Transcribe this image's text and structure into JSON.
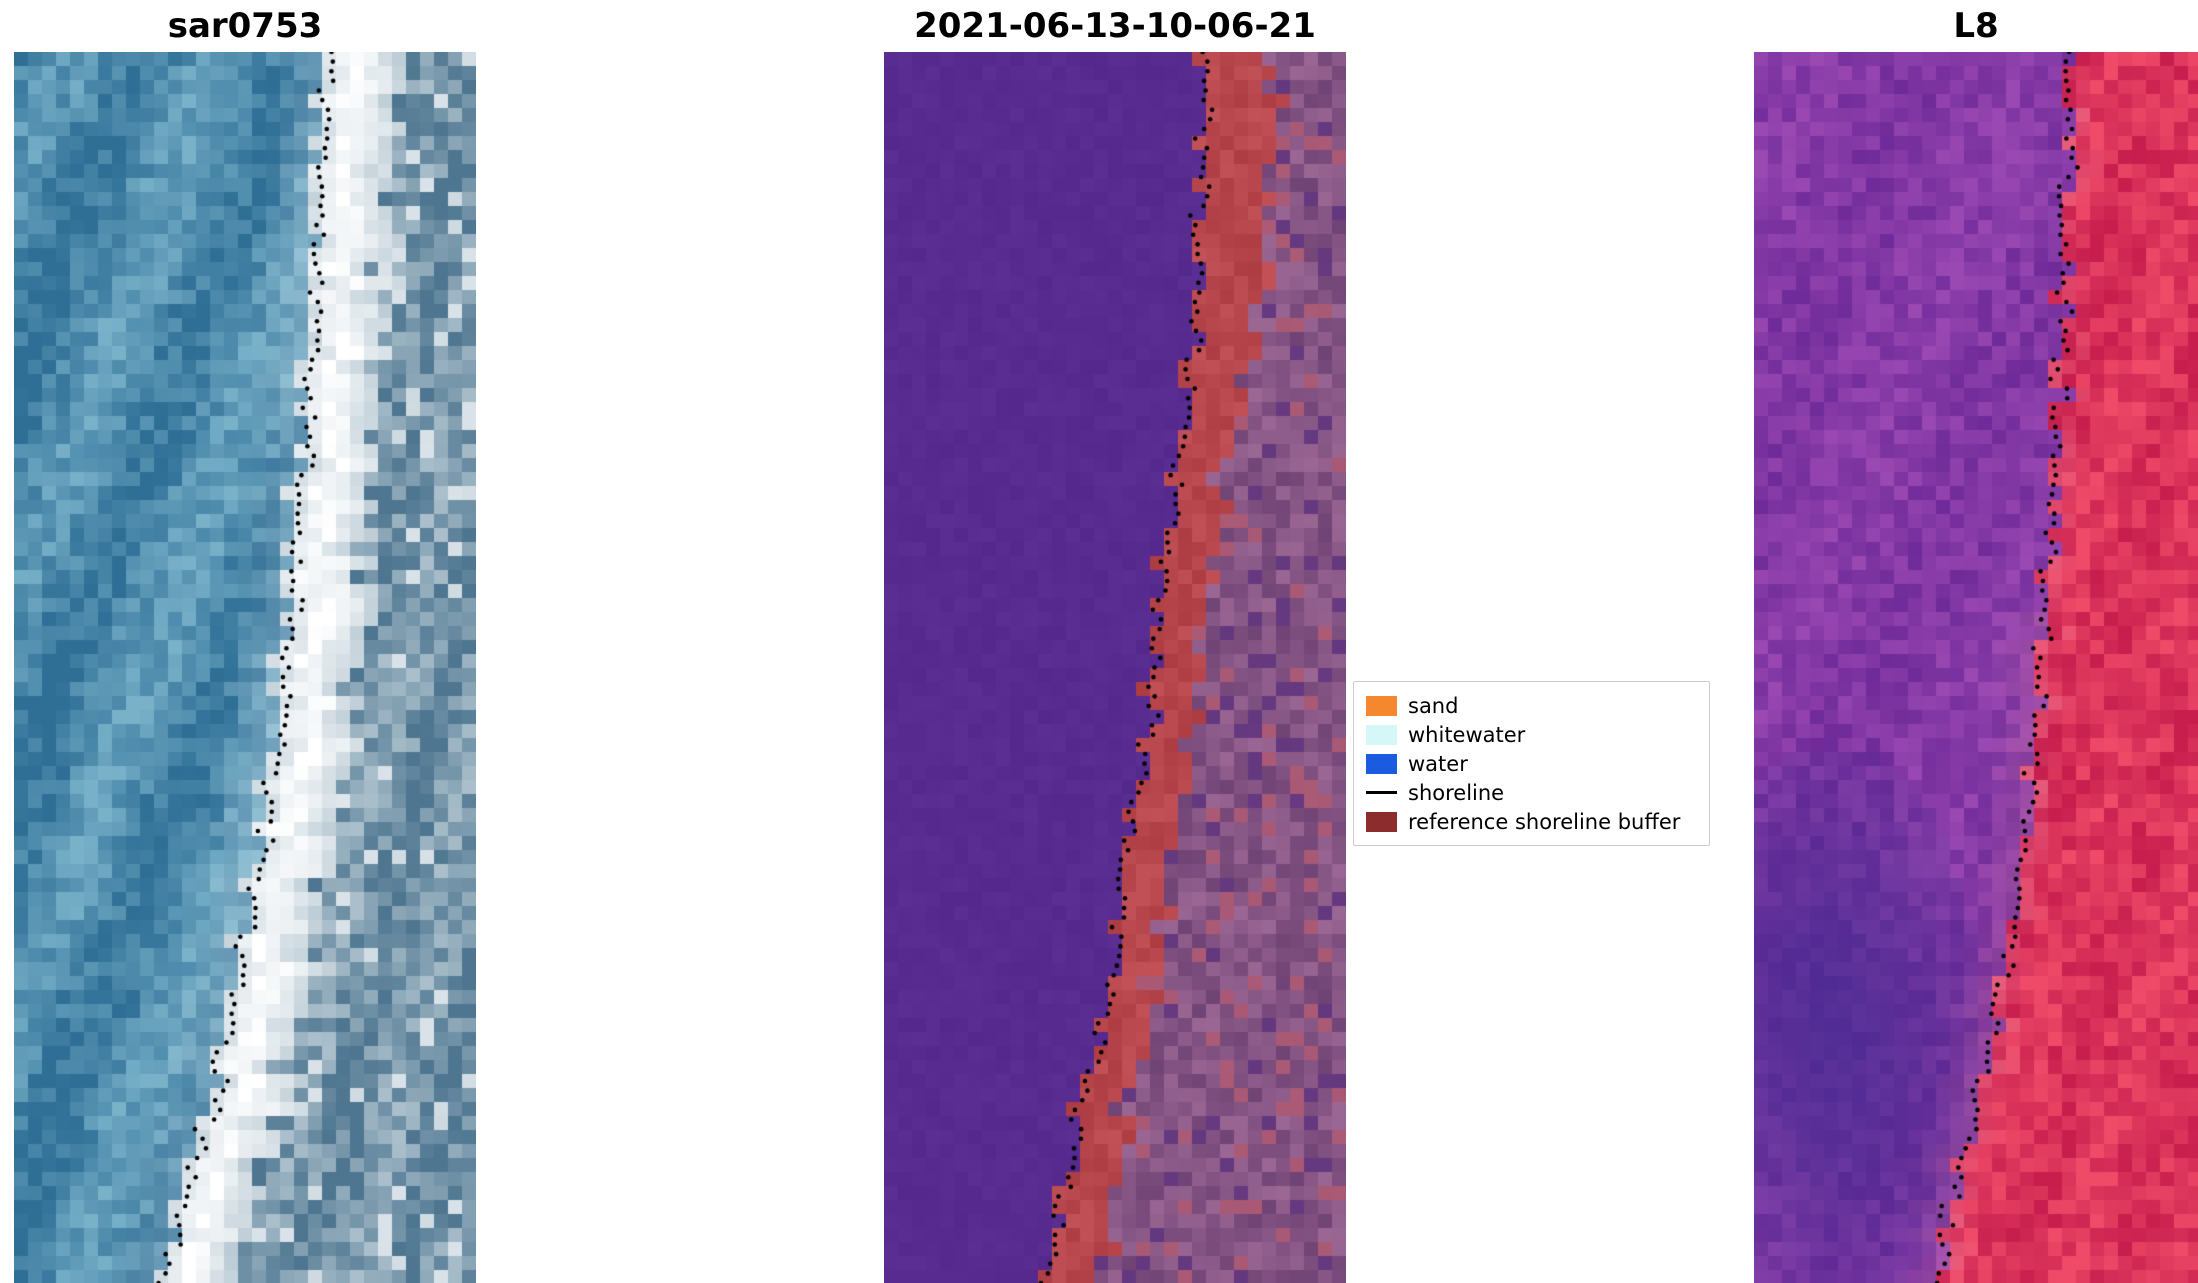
{
  "chart_data": {
    "type": "image-panels",
    "description": "Shoreline detection figure with three satellite image panels (SAR image, classified image with reference shoreline buffer, Landsat-8 false-color image), each overlaid with a black dotted detected shoreline.",
    "panels": [
      {
        "title": "sar0753",
        "kind": "sar",
        "seed": 11,
        "shoreline": [
          [
            0,
            0.685
          ],
          [
            0.25,
            0.645
          ],
          [
            0.5,
            0.6
          ],
          [
            0.75,
            0.49
          ],
          [
            0.9,
            0.4
          ],
          [
            1,
            0.31
          ]
        ],
        "band_width": 0.16,
        "palette": {
          "water_dark": "#2f6f96",
          "water_light": "#79b1c9",
          "white": "#ffffff",
          "band_gray": "#b7c8d2",
          "right_dark": "#4e7690",
          "right_light": "#aabfcb"
        }
      },
      {
        "title": "2021-06-13-10-06-21",
        "kind": "classes",
        "seed": 23,
        "shoreline": [
          [
            0,
            0.7
          ],
          [
            0.25,
            0.665
          ],
          [
            0.5,
            0.585
          ],
          [
            0.75,
            0.5
          ],
          [
            0.85,
            0.43
          ],
          [
            1,
            0.355
          ]
        ],
        "band_width_points": [
          [
            0,
            0.17
          ],
          [
            0.3,
            0.12
          ],
          [
            0.5,
            0.1
          ],
          [
            1,
            0.11
          ]
        ],
        "palette": {
          "water_class": "#582b90",
          "buffer_red": "#b8474d",
          "mauve_dark": "#6b4072",
          "mauve_light": "#a06b97"
        }
      },
      {
        "title": "L8",
        "kind": "l8",
        "seed": 37,
        "shoreline": [
          [
            0,
            0.715
          ],
          [
            0.25,
            0.69
          ],
          [
            0.5,
            0.65
          ],
          [
            0.7,
            0.6
          ],
          [
            0.85,
            0.5
          ],
          [
            1,
            0.41
          ]
        ],
        "palette": {
          "purple_dark": "#6f2b99",
          "purple_light": "#9a48b2",
          "blob": "#41298f",
          "red_dark": "#c71e4e",
          "red_light": "#ef4a68",
          "pink": "#de7f9d"
        }
      }
    ],
    "legend": {
      "position": "center-right",
      "items": [
        {
          "label": "sand",
          "color": "#f5872e",
          "type": "patch"
        },
        {
          "label": "whitewater",
          "color": "#d6f7f7",
          "type": "patch"
        },
        {
          "label": "water",
          "color": "#1a5be0",
          "type": "patch"
        },
        {
          "label": "shoreline",
          "color": "#000000",
          "type": "line"
        },
        {
          "label": "reference shoreline buffer",
          "color": "#8c2c2c",
          "type": "patch"
        }
      ]
    }
  }
}
